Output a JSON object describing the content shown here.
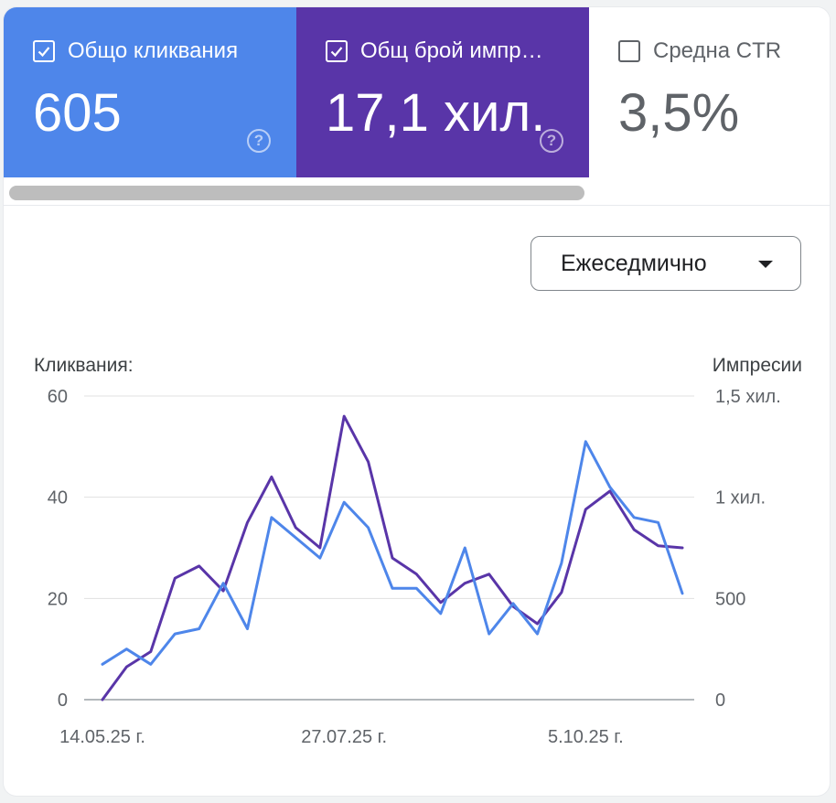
{
  "metrics": {
    "clicks": {
      "label": "Общо кликвания",
      "value": "605",
      "checked": true,
      "color": "#4e86ea"
    },
    "impressions": {
      "label": "Общ брой импр…",
      "value": "17,1 хил.",
      "checked": true,
      "color": "#5935a8"
    },
    "ctr": {
      "label": "Средна CTR",
      "value": "3,5%",
      "checked": false
    }
  },
  "help_glyph": "?",
  "period_select": {
    "value": "Ежеседмично"
  },
  "chart_data": {
    "type": "line",
    "left_axis": {
      "label": "Кликвания:",
      "ylim": [
        0,
        60
      ],
      "ticks": [
        0,
        20,
        40,
        60
      ],
      "tick_labels": [
        "0",
        "20",
        "40",
        "60"
      ]
    },
    "right_axis": {
      "label": "Импресии",
      "ylim": [
        0,
        1500
      ],
      "ticks": [
        0,
        500,
        1000,
        1500
      ],
      "tick_labels": [
        "0",
        "500",
        "1 хил.",
        "1,5 хил."
      ]
    },
    "x_tick_labels": [
      {
        "index": 0,
        "label": "14.05.25 г."
      },
      {
        "index": 10,
        "label": "27.07.25 г."
      },
      {
        "index": 20,
        "label": "5.10.25 г."
      }
    ],
    "grid": true,
    "series": [
      {
        "name": "Общо кликвания",
        "axis": "left",
        "color": "#4e86ea",
        "values": [
          7,
          10,
          7,
          13,
          14,
          23,
          14,
          36,
          32,
          28,
          39,
          34,
          22,
          22,
          17,
          30,
          13,
          19,
          13,
          27,
          51,
          42,
          36,
          35,
          21
        ]
      },
      {
        "name": "Общ брой импр…",
        "axis": "right",
        "color": "#5935a8",
        "values": [
          0,
          162,
          237,
          600,
          660,
          537,
          875,
          1100,
          850,
          750,
          1400,
          1175,
          700,
          620,
          480,
          575,
          620,
          460,
          375,
          530,
          940,
          1030,
          840,
          760,
          750
        ]
      }
    ]
  }
}
